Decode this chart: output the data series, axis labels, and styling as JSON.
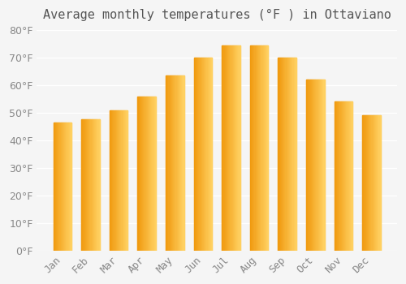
{
  "title": "Average monthly temperatures (°F ) in Ottaviano",
  "months": [
    "Jan",
    "Feb",
    "Mar",
    "Apr",
    "May",
    "Jun",
    "Jul",
    "Aug",
    "Sep",
    "Oct",
    "Nov",
    "Dec"
  ],
  "values": [
    46.5,
    47.5,
    51.0,
    56.0,
    63.5,
    70.0,
    74.5,
    74.5,
    70.0,
    62.0,
    54.0,
    49.0
  ],
  "bar_color_main": "#FDB92E",
  "bar_color_edge": "#E8A020",
  "background_color": "#F5F5F5",
  "grid_color": "#FFFFFF",
  "ylim": [
    0,
    80
  ],
  "yticks": [
    0,
    10,
    20,
    30,
    40,
    50,
    60,
    70,
    80
  ],
  "title_fontsize": 11,
  "tick_fontsize": 9,
  "title_color": "#555555",
  "tick_color": "#888888"
}
